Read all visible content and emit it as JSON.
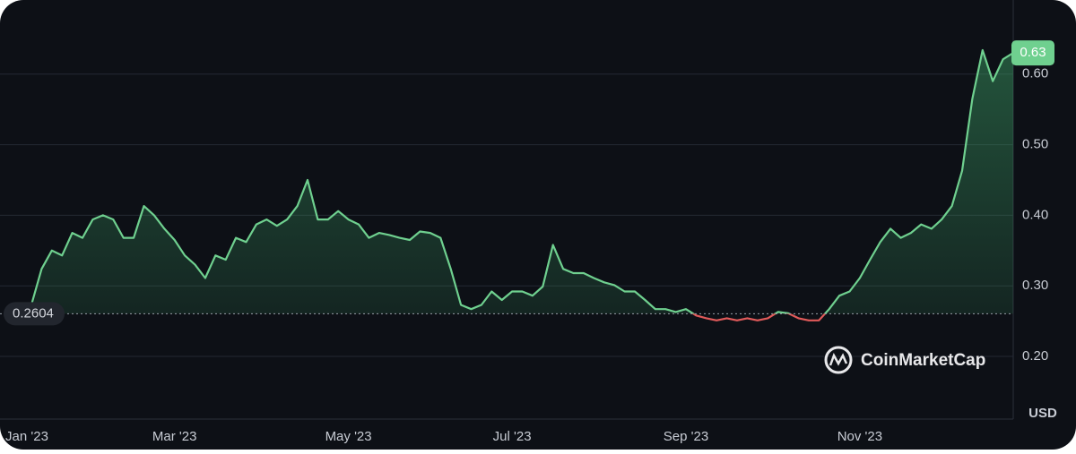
{
  "chart_data": {
    "type": "line",
    "categories": [
      "Jan '23",
      null,
      null,
      null,
      null,
      null,
      null,
      null,
      null,
      null,
      null,
      null,
      null,
      null,
      "Mar '23",
      null,
      null,
      null,
      null,
      null,
      null,
      null,
      null,
      null,
      null,
      null,
      null,
      null,
      null,
      null,
      null,
      "May '23",
      null,
      null,
      null,
      null,
      null,
      null,
      null,
      null,
      null,
      null,
      null,
      null,
      null,
      null,
      null,
      "Jul '23",
      null,
      null,
      null,
      null,
      null,
      null,
      null,
      null,
      null,
      null,
      null,
      null,
      null,
      null,
      null,
      null,
      "Sep '23",
      null,
      null,
      null,
      null,
      null,
      null,
      null,
      null,
      null,
      null,
      null,
      null,
      null,
      null,
      null,
      null,
      "Nov '23",
      null,
      null,
      null,
      null,
      null,
      null,
      null,
      null,
      null,
      null,
      null,
      null,
      null,
      null,
      null
    ],
    "values": [
      0.273,
      0.324,
      0.35,
      0.343,
      0.375,
      0.368,
      0.394,
      0.4,
      0.394,
      0.368,
      0.368,
      0.413,
      0.4,
      0.381,
      0.365,
      0.343,
      0.33,
      0.311,
      0.343,
      0.337,
      0.368,
      0.362,
      0.387,
      0.394,
      0.385,
      0.394,
      0.413,
      0.45,
      0.394,
      0.394,
      0.406,
      0.394,
      0.387,
      0.368,
      0.375,
      0.372,
      0.368,
      0.365,
      0.377,
      0.375,
      0.368,
      0.324,
      0.273,
      0.267,
      0.273,
      0.292,
      0.28,
      0.292,
      0.292,
      0.286,
      0.299,
      0.358,
      0.324,
      0.318,
      0.318,
      0.311,
      0.305,
      0.301,
      0.292,
      0.292,
      0.28,
      0.267,
      0.267,
      0.263,
      0.267,
      0.258,
      0.254,
      0.251,
      0.254,
      0.251,
      0.254,
      0.251,
      0.254,
      0.263,
      0.261,
      0.254,
      0.251,
      0.251,
      0.267,
      0.286,
      0.292,
      0.311,
      0.337,
      0.362,
      0.381,
      0.368,
      0.375,
      0.387,
      0.381,
      0.394,
      0.413,
      0.463,
      0.565,
      0.634,
      0.59,
      0.621,
      0.63
    ],
    "color": "#6fd08f",
    "below_color": "#e05a5a",
    "reference_value": 0.2604,
    "ylim": [
      0.115,
      0.705
    ],
    "yticks": [
      {
        "value": 0.2,
        "label": "0.20"
      },
      {
        "value": 0.3,
        "label": "0.30"
      },
      {
        "value": 0.4,
        "label": "0.40"
      },
      {
        "value": 0.5,
        "label": "0.50"
      },
      {
        "value": 0.6,
        "label": "0.60"
      }
    ],
    "grid": true,
    "currency": "USD",
    "watermark": "CoinMarketCap"
  }
}
